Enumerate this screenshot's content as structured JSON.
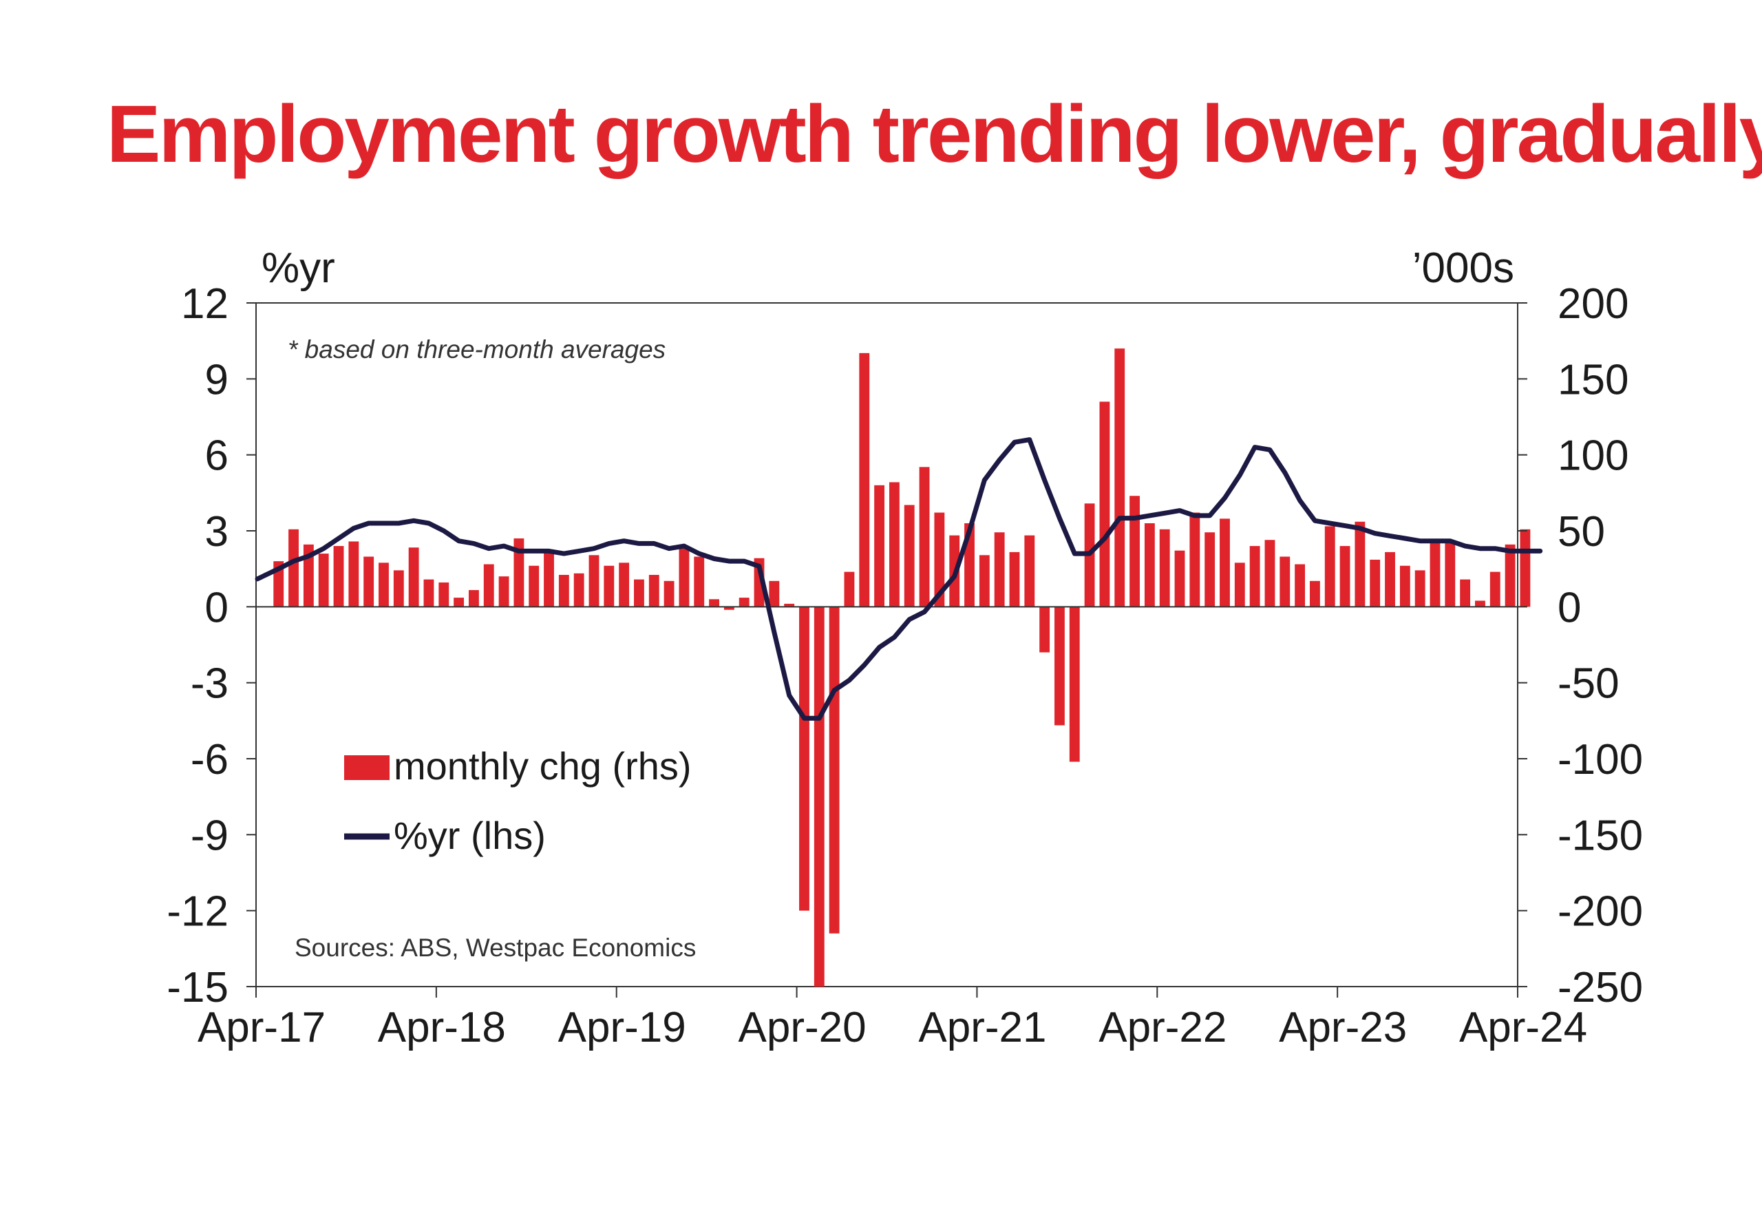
{
  "chart_data": {
    "type": "bar+line",
    "title": "Employment growth trending lower, gradually",
    "left_unit": "%yr",
    "right_unit": "’000s",
    "note": "* based on three-month averages",
    "source": "Sources: ABS, Westpac Economics",
    "y_left": {
      "min": -15,
      "max": 12,
      "ticks": [
        "12",
        "9",
        "6",
        "3",
        "0",
        "-3",
        "-6",
        "-9",
        "-12",
        "-15"
      ]
    },
    "y_right": {
      "min": -250,
      "max": 200,
      "ticks": [
        "200",
        "150",
        "100",
        "50",
        "0",
        "-50",
        "-100",
        "-150",
        "-200",
        "-250"
      ]
    },
    "x_ticks": [
      "Apr-17",
      "Apr-18",
      "Apr-19",
      "Apr-20",
      "Apr-21",
      "Apr-22",
      "Apr-23",
      "Apr-24"
    ],
    "x_range": {
      "start": "Apr-17",
      "end": "Apr-24",
      "months": 84
    },
    "colors": {
      "bars": "#e0242b",
      "line": "#1c1a44",
      "title": "#e0242b"
    },
    "series": [
      {
        "name": "monthly chg (rhs)",
        "axis": "right",
        "type": "bar",
        "values": [
          30,
          51,
          41,
          35,
          40,
          43,
          33,
          29,
          24,
          39,
          18,
          16,
          6,
          11,
          28,
          20,
          45,
          27,
          37,
          21,
          22,
          34,
          27,
          29,
          18,
          21,
          17,
          40,
          33,
          5,
          -2,
          6,
          32,
          17,
          2,
          -200,
          -250,
          -215,
          23,
          167,
          80,
          82,
          67,
          92,
          62,
          47,
          55,
          34,
          49,
          36,
          47,
          -30,
          -78,
          -102,
          68,
          135,
          170,
          73,
          55,
          51,
          37,
          62,
          49,
          58,
          29,
          40,
          44,
          33,
          28,
          17,
          53,
          40,
          56,
          31,
          36,
          27,
          24,
          43,
          43,
          18,
          4,
          23,
          41,
          51
        ],
        "start_month": 1
      },
      {
        "name": "%yr (lhs)",
        "axis": "left",
        "type": "line",
        "values": [
          1.1,
          1.5,
          1.8,
          2.0,
          2.3,
          2.7,
          3.1,
          3.3,
          3.3,
          3.3,
          3.4,
          3.3,
          3.0,
          2.6,
          2.5,
          2.3,
          2.4,
          2.2,
          2.2,
          2.2,
          2.1,
          2.2,
          2.3,
          2.5,
          2.6,
          2.5,
          2.5,
          2.3,
          2.4,
          2.1,
          1.9,
          1.8,
          1.8,
          1.6,
          -1.0,
          -3.5,
          -4.4,
          -4.4,
          -3.3,
          -2.9,
          -2.3,
          -1.6,
          -1.2,
          -0.5,
          -0.2,
          0.5,
          1.2,
          3.0,
          5.0,
          5.8,
          6.5,
          6.6,
          5.0,
          3.5,
          2.1,
          2.1,
          2.7,
          3.5,
          3.5,
          3.6,
          3.7,
          3.8,
          3.6,
          3.6,
          4.3,
          5.2,
          6.3,
          6.2,
          5.3,
          4.2,
          3.4,
          3.3,
          3.2,
          3.1,
          2.9,
          2.8,
          2.7,
          2.6,
          2.6,
          2.6,
          2.4,
          2.3,
          2.3,
          2.2,
          2.2,
          2.2
        ],
        "start_month": 0
      }
    ],
    "legend": {
      "placement": "lower-left",
      "entries": [
        "monthly chg (rhs)",
        "%yr (lhs)"
      ]
    }
  }
}
